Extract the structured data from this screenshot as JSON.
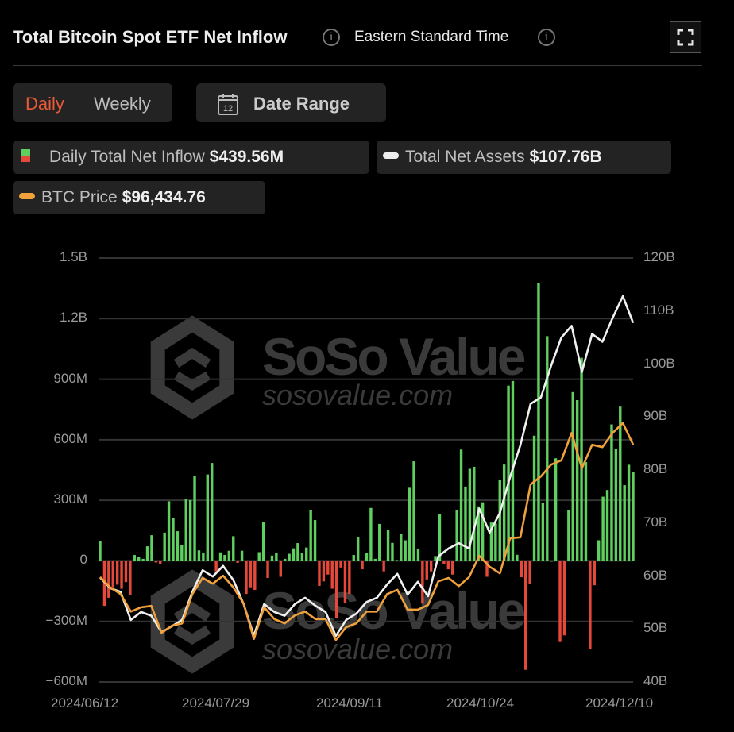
{
  "header": {
    "title": "Total Bitcoin Spot ETF Net Inflow",
    "timezone": "Eastern Standard Time",
    "info_icon": "info-circle-icon",
    "expand_icon": "fullscreen-icon"
  },
  "controls": {
    "daily_label": "Daily",
    "weekly_label": "Weekly",
    "active_period": "Daily",
    "date_range_label": "Date Range",
    "calendar_icon_day": "12"
  },
  "legend": {
    "inflow": {
      "label": "Daily Total Net Inflow",
      "value": "$439.56M"
    },
    "assets": {
      "label": "Total Net Assets",
      "value": "$107.76B"
    },
    "price": {
      "label": "BTC Price",
      "value": "$96,434.76"
    }
  },
  "watermark": {
    "brand": "SoSo Value",
    "site": "sosovalue.com"
  },
  "colors": {
    "accent": "#e85a38",
    "inflow_positive": "#5fcf5f",
    "inflow_negative": "#e5493a",
    "total_net_assets": "#f0f0f0",
    "btc_price": "#f0a13c",
    "background": "#000000"
  },
  "chart_data": {
    "type": "bar+line",
    "title": "Total Bitcoin Spot ETF Net Inflow",
    "grid": true,
    "left_axis": {
      "ticks": [
        "1.5B",
        "1.2B",
        "900M",
        "600M",
        "300M",
        "0",
        "−300M",
        "−600M"
      ],
      "range_millions": [
        -600,
        1500
      ]
    },
    "right_axis": {
      "ticks": [
        "120B",
        "110B",
        "100B",
        "90B",
        "80B",
        "70B",
        "60B",
        "50B",
        "40B"
      ],
      "range_billions": [
        40,
        120
      ]
    },
    "x_ticks": [
      "2024/06/12",
      "2024/07/29",
      "2024/09/11",
      "2024/10/24",
      "2024/12/10"
    ],
    "series": [
      {
        "name": "Daily Total Net Inflow",
        "type": "bar",
        "unit": "USD millions",
        "values": [
          98,
          -223,
          -183,
          -131,
          -118,
          -138,
          -105,
          -170,
          29,
          20,
          10,
          72,
          127,
          -8,
          -17,
          140,
          295,
          214,
          147,
          79,
          308,
          301,
          422,
          52,
          37,
          428,
          485,
          -52,
          42,
          29,
          50,
          122,
          -10,
          50,
          -164,
          -131,
          -144,
          43,
          193,
          -85,
          26,
          37,
          -79,
          10,
          35,
          62,
          88,
          39,
          66,
          252,
          202,
          -124,
          -102,
          -68,
          -138,
          -282,
          -33,
          -207,
          -164,
          29,
          118,
          -42,
          39,
          262,
          10,
          183,
          -52,
          155,
          89,
          4,
          132,
          102,
          362,
          493,
          59,
          -212,
          -92,
          -52,
          24,
          231,
          -16,
          -42,
          -68,
          250,
          551,
          368,
          456,
          466,
          270,
          290,
          -79,
          190,
          185,
          400,
          477,
          868,
          891,
          30,
          -81,
          -540,
          -114,
          620,
          1375,
          288,
          1113,
          0,
          508,
          -402,
          -369,
          253,
          836,
          796,
          1006,
          489,
          -437,
          -121,
          102,
          318,
          351,
          676,
          554,
          764,
          375,
          476,
          439.56
        ]
      },
      {
        "name": "Total Net Assets",
        "type": "line",
        "unit": "USD billions",
        "values": [
          59.7,
          57.7,
          57,
          51.7,
          53.2,
          52.5,
          49.4,
          50.5,
          51.7,
          57,
          61.1,
          59.9,
          61.9,
          59.2,
          54.7,
          48.7,
          54.7,
          53.2,
          52.5,
          54.7,
          55.9,
          54.4,
          53.2,
          48.7,
          51.7,
          52.9,
          55.1,
          55.9,
          58.4,
          60.4,
          56.5,
          58.9,
          56.2,
          63.7,
          65.2,
          66.2,
          65.2,
          72.7,
          68.2,
          71.9,
          78.7,
          84.7,
          92.5,
          93.7,
          99.7,
          105,
          107.2,
          98.5,
          105.7,
          104.2,
          108.7,
          112.8,
          107.76
        ]
      },
      {
        "name": "BTC Price",
        "type": "line",
        "unit": "USD thousands",
        "values": [
          68.4,
          66.2,
          64.8,
          61.1,
          62,
          62.3,
          56.6,
          58.1,
          58.6,
          64.8,
          68.2,
          67,
          68.7,
          66.2,
          62.8,
          55.3,
          62,
          59.5,
          58.6,
          60.3,
          61.1,
          59.5,
          59.5,
          55.1,
          57.8,
          58.6,
          61.1,
          61.1,
          64.8,
          65.7,
          61.5,
          61.5,
          62.5,
          67.5,
          68.2,
          66.5,
          68.4,
          72.9,
          70.6,
          69.2,
          76.6,
          76.8,
          88,
          89.7,
          92.2,
          93.1,
          98.9,
          91.4,
          96.4,
          95.9,
          98.9,
          101,
          96.43
        ]
      }
    ]
  }
}
